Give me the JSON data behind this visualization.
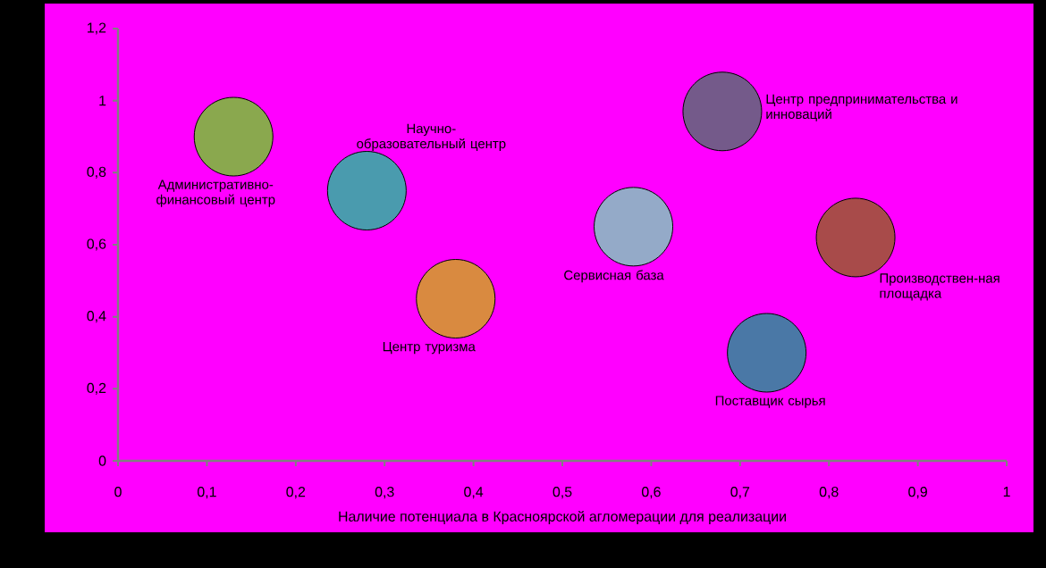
{
  "chart_data": {
    "type": "bubble",
    "xlabel": "Наличие потенциала в Красноярской агломерации для реализации",
    "xlim": [
      0,
      1
    ],
    "xticks": [
      0,
      {
        "value": 0.1,
        "label": "0,1"
      },
      {
        "value": 0.2,
        "label": "0,2"
      },
      {
        "value": 0.3,
        "label": "0,3"
      },
      {
        "value": 0.4,
        "label": "0,4"
      },
      {
        "value": 0.5,
        "label": "0,5"
      },
      {
        "value": 0.6,
        "label": "0,6"
      },
      {
        "value": 0.7,
        "label": "0,7"
      },
      {
        "value": 0.8,
        "label": "0,8"
      },
      {
        "value": 0.9,
        "label": "0,9"
      },
      1
    ],
    "ylim": [
      0,
      1.2
    ],
    "yticks": [
      0,
      {
        "value": 0.2,
        "label": "0,2"
      },
      {
        "value": 0.4,
        "label": "0,4"
      },
      {
        "value": 0.6,
        "label": "0,6"
      },
      {
        "value": 0.8,
        "label": "0,8"
      },
      1,
      {
        "value": 1.2,
        "label": "1,2"
      }
    ],
    "grid": false,
    "marker": "circle",
    "series": [
      {
        "name": "Административно-финансовый центр",
        "color": "#8aa84e",
        "x": [
          0.13
        ],
        "values": [
          0.9
        ],
        "sizes": [
          1
        ]
      },
      {
        "name": "Научно-образовательный центр",
        "color": "#4a9bae",
        "x": [
          0.28
        ],
        "values": [
          0.75
        ],
        "sizes": [
          1
        ]
      },
      {
        "name": "Центр туризма",
        "color": "#d98a40",
        "x": [
          0.38
        ],
        "values": [
          0.45
        ],
        "sizes": [
          1
        ]
      },
      {
        "name": "Сервисная база",
        "color": "#94aac8",
        "x": [
          0.58
        ],
        "values": [
          0.65
        ],
        "sizes": [
          1
        ]
      },
      {
        "name": "Центр предпринимательства и инноваций",
        "color": "#745a8a",
        "x": [
          0.68
        ],
        "values": [
          0.97
        ],
        "sizes": [
          1
        ]
      },
      {
        "name": "Поставщик сырья",
        "color": "#4a78a6",
        "x": [
          0.73
        ],
        "values": [
          0.3
        ],
        "sizes": [
          1
        ]
      },
      {
        "name": "Производствен-ная площадка",
        "color": "#a84b4a",
        "x": [
          0.83
        ],
        "values": [
          0.62
        ],
        "sizes": [
          1
        ]
      }
    ]
  }
}
